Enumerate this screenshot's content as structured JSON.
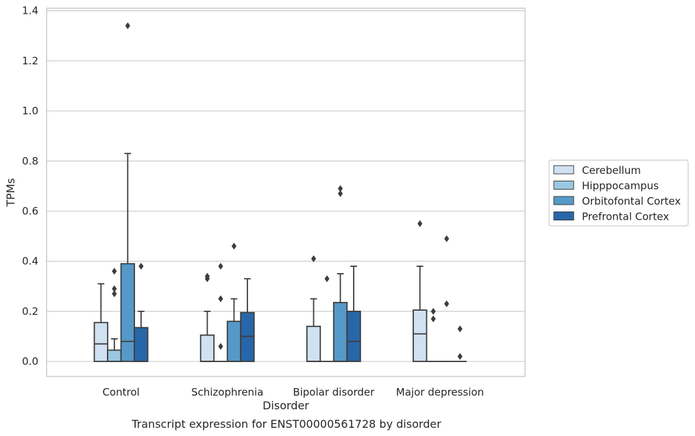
{
  "chart_data": {
    "type": "box",
    "xlabel": "Disorder",
    "ylabel": "TPMs",
    "caption": "Transcript expression for ENST00000561728 by disorder",
    "ylim": [
      -0.06,
      1.41
    ],
    "yticks": [
      0.0,
      0.2,
      0.4,
      0.6,
      0.8,
      1.0,
      1.2,
      1.4
    ],
    "ytick_labels": [
      "0.0",
      "0.2",
      "0.4",
      "0.6",
      "0.8",
      "1.0",
      "1.2",
      "1.4"
    ],
    "grid": "horizontal",
    "legend_position": "right",
    "categories": [
      "Control",
      "Schizophrenia",
      "Bipolar disorder",
      "Major depression"
    ],
    "series": [
      {
        "name": "Cerebellum",
        "color": "#d0e1f2",
        "boxes": [
          {
            "q1": 0.0,
            "median": 0.07,
            "q3": 0.155,
            "whisker_low": 0.0,
            "whisker_high": 0.31,
            "outliers": []
          },
          {
            "q1": 0.0,
            "median": 0.0,
            "q3": 0.105,
            "whisker_low": 0.0,
            "whisker_high": 0.2,
            "outliers": [
              0.33,
              0.34
            ]
          },
          {
            "q1": 0.0,
            "median": 0.0,
            "q3": 0.14,
            "whisker_low": 0.0,
            "whisker_high": 0.25,
            "outliers": [
              0.41
            ]
          },
          {
            "q1": 0.0,
            "median": 0.11,
            "q3": 0.205,
            "whisker_low": 0.0,
            "whisker_high": 0.38,
            "outliers": [
              0.55
            ]
          }
        ]
      },
      {
        "name": "Hipppocampus",
        "color": "#9ac8e0",
        "boxes": [
          {
            "q1": 0.0,
            "median": 0.0,
            "q3": 0.045,
            "whisker_low": 0.0,
            "whisker_high": 0.09,
            "outliers": [
              0.27,
              0.29,
              0.36
            ]
          },
          {
            "q1": 0.0,
            "median": 0.0,
            "q3": 0.0,
            "whisker_low": 0.0,
            "whisker_high": 0.0,
            "outliers": [
              0.06,
              0.25,
              0.38
            ]
          },
          {
            "q1": 0.0,
            "median": 0.0,
            "q3": 0.0,
            "whisker_low": 0.0,
            "whisker_high": 0.0,
            "outliers": [
              0.33
            ]
          },
          {
            "q1": 0.0,
            "median": 0.0,
            "q3": 0.0,
            "whisker_low": 0.0,
            "whisker_high": 0.0,
            "outliers": [
              0.17,
              0.2
            ]
          }
        ]
      },
      {
        "name": "Orbitofontal Cortex",
        "color": "#5599c9",
        "boxes": [
          {
            "q1": 0.0,
            "median": 0.08,
            "q3": 0.39,
            "whisker_low": 0.0,
            "whisker_high": 0.83,
            "outliers": [
              1.34
            ]
          },
          {
            "q1": 0.0,
            "median": 0.0,
            "q3": 0.16,
            "whisker_low": 0.0,
            "whisker_high": 0.25,
            "outliers": [
              0.46
            ]
          },
          {
            "q1": 0.0,
            "median": 0.0,
            "q3": 0.235,
            "whisker_low": 0.0,
            "whisker_high": 0.35,
            "outliers": [
              0.67,
              0.69
            ]
          },
          {
            "q1": 0.0,
            "median": 0.0,
            "q3": 0.0,
            "whisker_low": 0.0,
            "whisker_high": 0.0,
            "outliers": [
              0.23,
              0.49
            ]
          }
        ]
      },
      {
        "name": "Prefrontal Cortex",
        "color": "#2767a9",
        "boxes": [
          {
            "q1": 0.0,
            "median": 0.0,
            "q3": 0.135,
            "whisker_low": 0.0,
            "whisker_high": 0.2,
            "outliers": [
              0.38
            ]
          },
          {
            "q1": 0.0,
            "median": 0.1,
            "q3": 0.195,
            "whisker_low": 0.0,
            "whisker_high": 0.33,
            "outliers": []
          },
          {
            "q1": 0.0,
            "median": 0.08,
            "q3": 0.2,
            "whisker_low": 0.0,
            "whisker_high": 0.38,
            "outliers": []
          },
          {
            "q1": 0.0,
            "median": 0.0,
            "q3": 0.0,
            "whisker_low": 0.0,
            "whisker_high": 0.0,
            "outliers": [
              0.02,
              0.13
            ]
          }
        ]
      }
    ]
  }
}
